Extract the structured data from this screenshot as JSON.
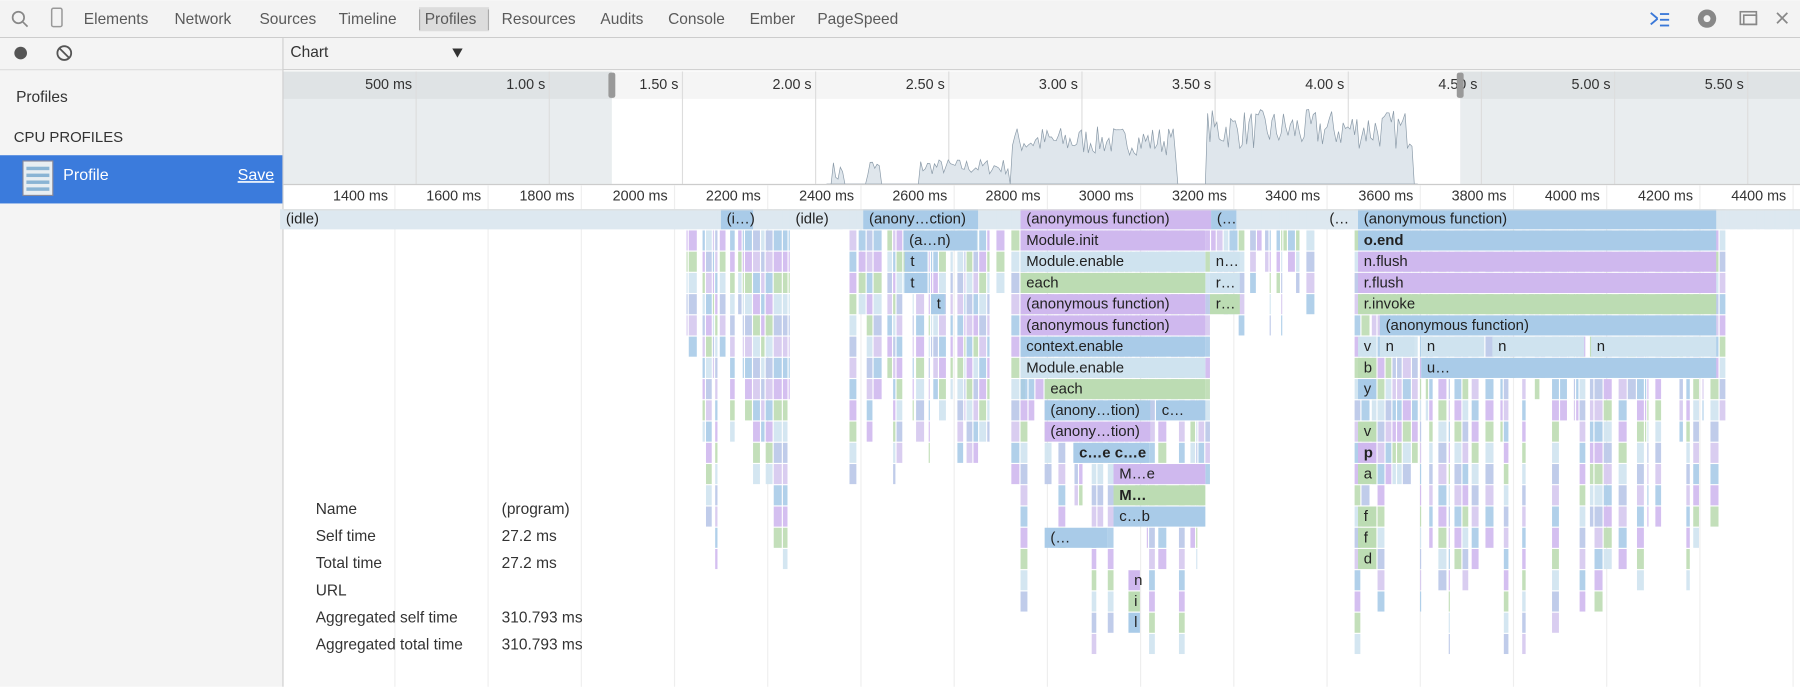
{
  "toolbar": {
    "tabs": [
      "Elements",
      "Network",
      "Sources",
      "Timeline",
      "Profiles",
      "Resources",
      "Audits",
      "Console",
      "Ember",
      "PageSpeed"
    ]
  },
  "sidebar": {
    "title": "Profiles",
    "section": "CPU PROFILES",
    "profile": "Profile",
    "save": "Save"
  },
  "chart_header": {
    "view": "Chart"
  },
  "overview": {
    "ticks": [
      "500 ms",
      "1.00 s",
      "1.50 s",
      "2.00 s",
      "2.50 s",
      "3.00 s",
      "3.50 s",
      "4.00 s",
      "4.50 s",
      "5.00 s",
      "5.50 s"
    ]
  },
  "flame": {
    "ticks": [
      "1400 ms",
      "1600 ms",
      "1800 ms",
      "2000 ms",
      "2200 ms",
      "2400 ms",
      "2600 ms",
      "2800 ms",
      "3000 ms",
      "3200 ms",
      "3400 ms",
      "3600 ms",
      "3800 ms",
      "4000 ms",
      "4200 ms",
      "4400 ms"
    ],
    "rows": [
      [
        "(idle)",
        "(i…)",
        "(idle)",
        "(anony…ction)",
        "(anonymous function)",
        "(…",
        "(…",
        "(anonymous function)"
      ],
      [
        "(a…n)",
        "Module.init",
        "o.end"
      ],
      [
        "t",
        "Module.enable",
        "n…",
        "n.flush"
      ],
      [
        "t",
        "each",
        "r…",
        "r.flush"
      ],
      [
        "t",
        "(anonymous function)",
        "r…",
        "r.invoke"
      ],
      [
        "(anonymous function)",
        "(anonymous function)"
      ],
      [
        "context.enable",
        "v",
        "n",
        "n",
        "n",
        "n"
      ],
      [
        "Module.enable",
        "b",
        "u…"
      ],
      [
        "each",
        "y"
      ],
      [
        "(anony…tion)",
        "c…"
      ],
      [
        "(anony…tion)",
        "v"
      ],
      [
        "c…e c…e",
        "p"
      ],
      [
        "M…e",
        "a"
      ],
      [
        "M…"
      ],
      [
        "c…b",
        "f"
      ],
      [
        "(…",
        "f"
      ],
      [
        "d"
      ],
      [
        "n"
      ],
      [
        "i"
      ],
      [
        "l"
      ]
    ]
  },
  "details": {
    "rows": [
      [
        "Name",
        "(program)"
      ],
      [
        "Self time",
        "27.2 ms"
      ],
      [
        "Total time",
        "27.2 ms"
      ],
      [
        "URL"
      ],
      [
        "Aggregated self time",
        "310.793 ms"
      ],
      [
        "Aggregated total time",
        "310.793 ms"
      ]
    ]
  }
}
